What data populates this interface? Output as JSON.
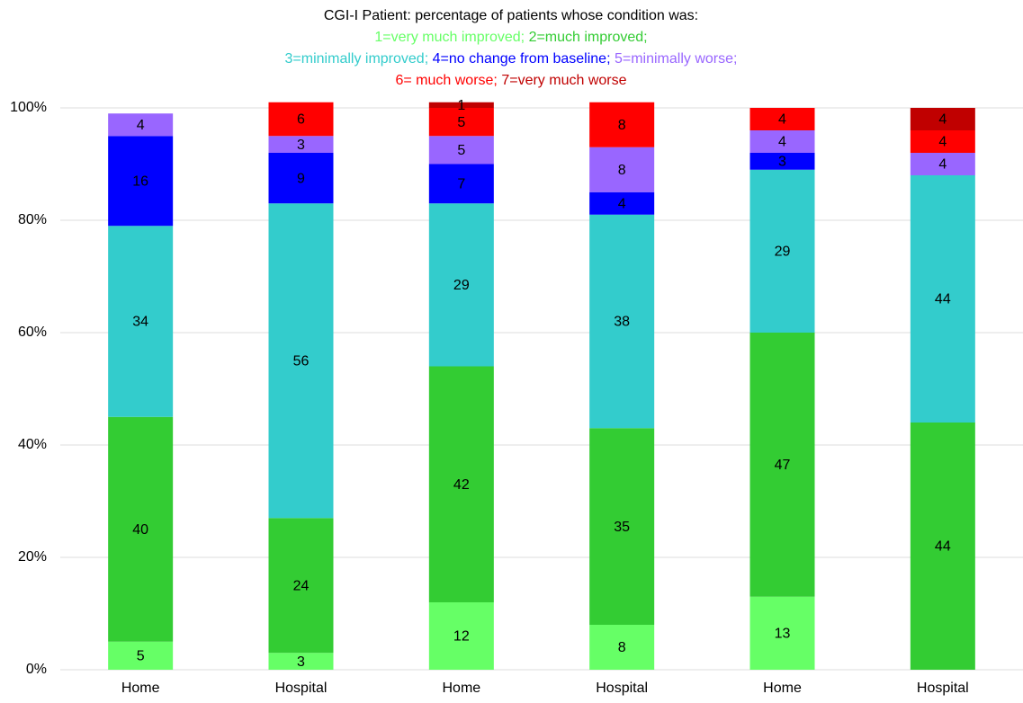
{
  "chart_data": {
    "type": "stacked_bar",
    "title": "CGI-I Patient: percentage of patients whose condition was:",
    "categories": [
      "Home",
      "Hospital",
      "Home",
      "Hospital",
      "Home",
      "Hospital"
    ],
    "series": [
      {
        "name": "1=very much improved;",
        "color": "#66ff66",
        "values": [
          5,
          3,
          12,
          8,
          13,
          null
        ]
      },
      {
        "name": "2=much improved;",
        "color": "#33cc33",
        "values": [
          40,
          24,
          42,
          35,
          47,
          44
        ]
      },
      {
        "name": "3=minimally improved;",
        "color": "#33cccc",
        "values": [
          34,
          56,
          29,
          38,
          29,
          44
        ]
      },
      {
        "name": "4=no change from baseline;",
        "color": "#0000ff",
        "values": [
          16,
          9,
          7,
          4,
          3,
          null
        ]
      },
      {
        "name": "5=minimally worse;",
        "color": "#9966ff",
        "values": [
          4,
          3,
          5,
          8,
          4,
          4
        ]
      },
      {
        "name": "6= much worse;",
        "color": "#ff0000",
        "values": [
          null,
          6,
          5,
          8,
          4,
          4
        ]
      },
      {
        "name": "7=very much worse",
        "color": "#c00000",
        "values": [
          null,
          null,
          1,
          null,
          null,
          4
        ]
      }
    ],
    "ylim": [
      0,
      100
    ],
    "yticks": [
      {
        "value": 0,
        "label": "0%"
      },
      {
        "value": 20,
        "label": "20%"
      },
      {
        "value": 40,
        "label": "40%"
      },
      {
        "value": 60,
        "label": "60%"
      },
      {
        "value": 80,
        "label": "80%"
      },
      {
        "value": 100,
        "label": "100%"
      }
    ],
    "grid": true
  }
}
